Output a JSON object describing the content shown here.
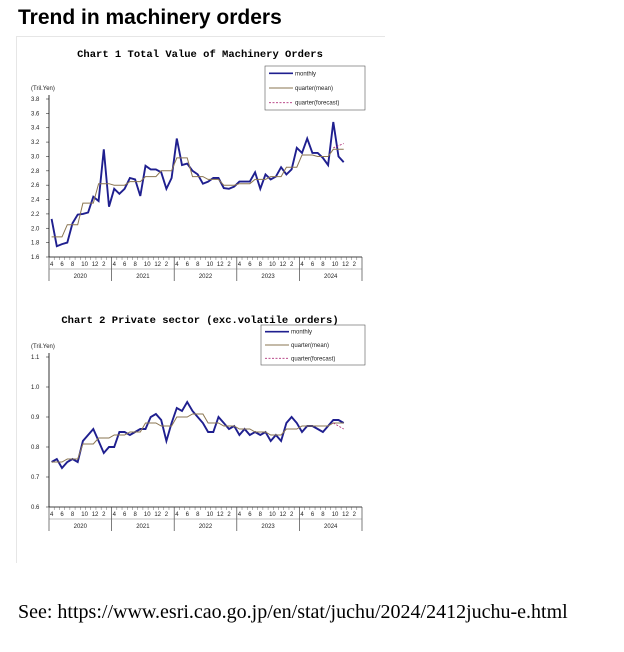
{
  "page_title": "Trend in machinery orders",
  "source_note": "See: https://www.esri.cao.go.jp/en/stat/juchu/2024/2412juchu-e.html",
  "colors": {
    "monthly": "#1f1f8f",
    "quarter_mean": "#8a7550",
    "quarter_forecast": "#b0307a"
  },
  "chart_data": [
    {
      "type": "line",
      "title": "Chart 1  Total Value of Machinery Orders",
      "ylabel": "(Tril.Yen)",
      "ylim": [
        1.6,
        3.8
      ],
      "yticks": [
        "1.6",
        "1.8",
        "2.0",
        "2.2",
        "2.4",
        "2.6",
        "2.8",
        "3.0",
        "3.2",
        "3.4",
        "3.6",
        "3.8"
      ],
      "month_ticks": [
        "4",
        "6",
        "8",
        "10",
        "12",
        "2"
      ],
      "years": [
        "2020",
        "2021",
        "2022",
        "2023",
        "2024"
      ],
      "legend": [
        "monthly",
        "quarter(mean)",
        "quarter(forecast)"
      ],
      "series": [
        {
          "name": "monthly",
          "values": [
            2.13,
            1.75,
            1.78,
            1.8,
            2.07,
            2.19,
            2.2,
            2.22,
            2.44,
            2.38,
            3.1,
            2.3,
            2.55,
            2.48,
            2.55,
            2.7,
            2.68,
            2.45,
            2.87,
            2.82,
            2.82,
            2.78,
            2.55,
            2.7,
            3.25,
            2.88,
            2.9,
            2.8,
            2.75,
            2.62,
            2.65,
            2.7,
            2.7,
            2.56,
            2.55,
            2.58,
            2.65,
            2.65,
            2.65,
            2.78,
            2.55,
            2.75,
            2.68,
            2.72,
            2.85,
            2.75,
            2.82,
            3.12,
            3.05,
            3.25,
            3.05,
            3.05,
            2.98,
            2.88,
            3.48,
            3.0,
            2.92
          ]
        },
        {
          "name": "quarter(mean)",
          "values": [
            1.88,
            1.88,
            1.88,
            2.05,
            2.05,
            2.05,
            2.35,
            2.35,
            2.35,
            2.62,
            2.62,
            2.62,
            2.6,
            2.6,
            2.6,
            2.65,
            2.65,
            2.65,
            2.72,
            2.72,
            2.72,
            2.8,
            2.8,
            2.8,
            2.98,
            2.98,
            2.98,
            2.72,
            2.72,
            2.72,
            2.68,
            2.68,
            2.68,
            2.6,
            2.6,
            2.6,
            2.62,
            2.62,
            2.62,
            2.68,
            2.68,
            2.68,
            2.72,
            2.72,
            2.72,
            2.85,
            2.85,
            2.85,
            3.02,
            3.02,
            3.02,
            3.0,
            3.0,
            3.0,
            3.1,
            3.1,
            3.1
          ]
        },
        {
          "name": "quarter(forecast)",
          "values": [
            3.12,
            3.15,
            3.18
          ],
          "start_index": 54
        }
      ]
    },
    {
      "type": "line",
      "title": "Chart 2  Private sector (exc.volatile orders)",
      "ylabel": "(Tril.Yen)",
      "ylim": [
        0.6,
        1.1
      ],
      "yticks": [
        "0.6",
        "0.7",
        "0.8",
        "0.9",
        "1.0",
        "1.1"
      ],
      "month_ticks": [
        "4",
        "6",
        "8",
        "10",
        "12",
        "2"
      ],
      "years": [
        "2020",
        "2021",
        "2022",
        "2023",
        "2024"
      ],
      "legend": [
        "monthly",
        "quarter(mean)",
        "quarter(forecast)"
      ],
      "series": [
        {
          "name": "monthly",
          "values": [
            0.75,
            0.76,
            0.73,
            0.75,
            0.76,
            0.75,
            0.82,
            0.84,
            0.86,
            0.82,
            0.78,
            0.8,
            0.8,
            0.85,
            0.85,
            0.84,
            0.85,
            0.86,
            0.86,
            0.9,
            0.91,
            0.89,
            0.82,
            0.88,
            0.93,
            0.92,
            0.95,
            0.92,
            0.9,
            0.88,
            0.85,
            0.85,
            0.9,
            0.88,
            0.86,
            0.87,
            0.84,
            0.86,
            0.84,
            0.85,
            0.84,
            0.85,
            0.82,
            0.84,
            0.82,
            0.88,
            0.9,
            0.88,
            0.85,
            0.87,
            0.87,
            0.86,
            0.85,
            0.87,
            0.89,
            0.89,
            0.88
          ]
        },
        {
          "name": "quarter(mean)",
          "values": [
            0.75,
            0.75,
            0.75,
            0.76,
            0.76,
            0.76,
            0.81,
            0.81,
            0.81,
            0.83,
            0.83,
            0.83,
            0.84,
            0.84,
            0.84,
            0.85,
            0.85,
            0.85,
            0.88,
            0.88,
            0.88,
            0.87,
            0.87,
            0.87,
            0.9,
            0.9,
            0.9,
            0.91,
            0.91,
            0.91,
            0.88,
            0.88,
            0.88,
            0.87,
            0.87,
            0.87,
            0.86,
            0.86,
            0.86,
            0.85,
            0.85,
            0.85,
            0.84,
            0.84,
            0.84,
            0.86,
            0.86,
            0.86,
            0.87,
            0.87,
            0.87,
            0.87,
            0.87,
            0.87,
            0.88,
            0.88,
            0.88
          ]
        },
        {
          "name": "quarter(forecast)",
          "values": [
            0.88,
            0.87,
            0.86
          ],
          "start_index": 54
        }
      ]
    }
  ]
}
